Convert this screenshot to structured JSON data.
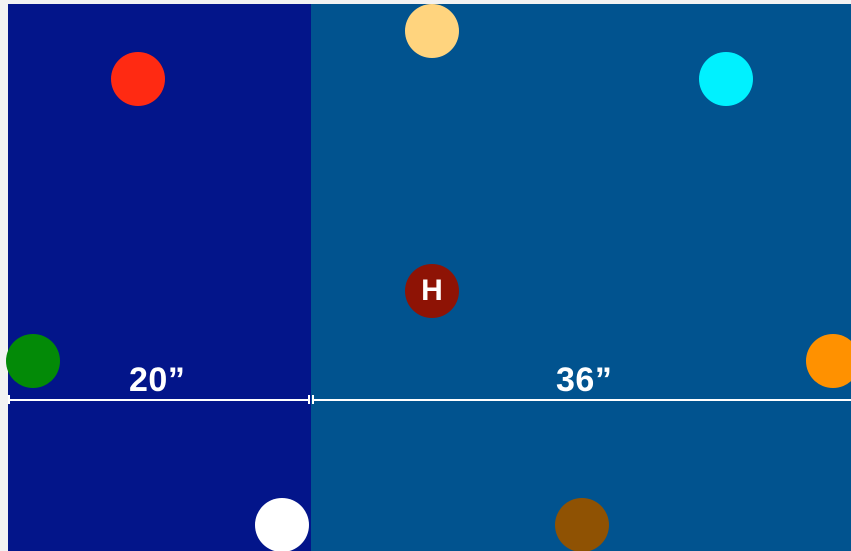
{
  "colors": {
    "left_panel": "#03158A",
    "right_panel": "#01538F",
    "dimension_line": "#FFFFFF"
  },
  "dimensions": {
    "left_label": "20”",
    "right_label": "36”"
  },
  "markers": [
    {
      "id": "red",
      "color": "#FF2A12"
    },
    {
      "id": "light-orange",
      "color": "#FFD47E"
    },
    {
      "id": "cyan",
      "color": "#00F1FF"
    },
    {
      "id": "hole",
      "color": "#8E1305",
      "label": "H"
    },
    {
      "id": "green",
      "color": "#038A07"
    },
    {
      "id": "orange",
      "color": "#FF9100"
    },
    {
      "id": "white",
      "color": "#FFFFFF"
    },
    {
      "id": "brown",
      "color": "#8F5203"
    }
  ]
}
